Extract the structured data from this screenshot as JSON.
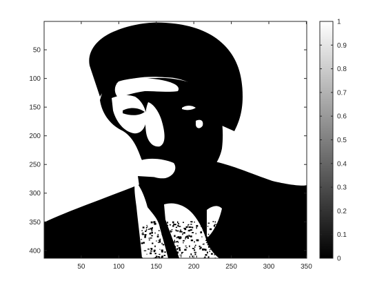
{
  "chart_data": {
    "type": "heatmap",
    "title": "",
    "xlabel": "",
    "ylabel": "",
    "xlim": [
      0.5,
      350.5
    ],
    "ylim": [
      0.5,
      413.5
    ],
    "y_reversed": true,
    "x_ticks": [
      50,
      100,
      150,
      200,
      250,
      300,
      350
    ],
    "y_ticks": [
      50,
      100,
      150,
      200,
      250,
      300,
      350,
      400
    ],
    "colorbar": {
      "colormap": "gray",
      "clim": [
        0,
        1
      ],
      "ticks": [
        0,
        0.1,
        0.2,
        0.3,
        0.4,
        0.5,
        0.6,
        0.7,
        0.8,
        0.9,
        1
      ]
    },
    "image_values": "binary (0 = black, 1 = white) thresholded portrait of a man in a dark jacket",
    "colors": {
      "low": "#000000",
      "high": "#ffffff",
      "axis": "#262626"
    }
  }
}
